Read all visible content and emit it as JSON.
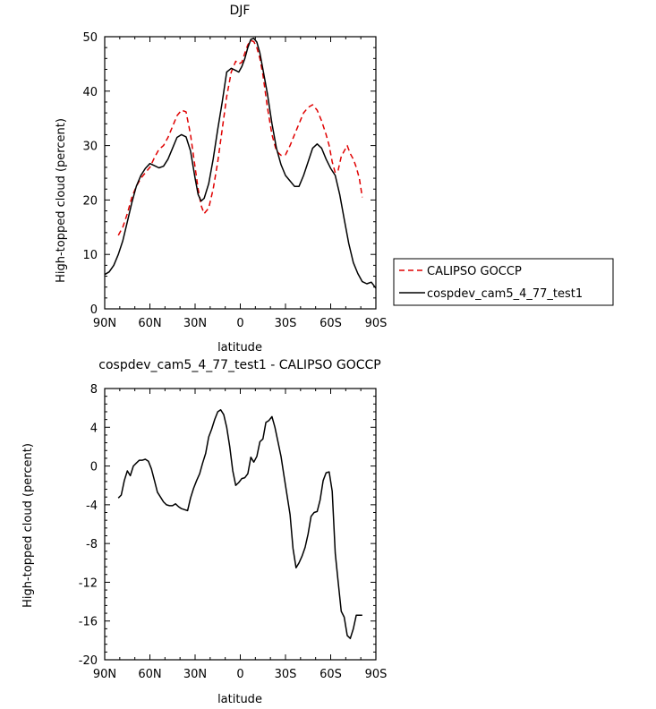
{
  "chart_data": [
    {
      "type": "line",
      "title": "DJF",
      "xlabel": "latitude",
      "ylabel": "High-topped cloud (percent)",
      "xlim": [
        -90,
        90
      ],
      "ylim": [
        0,
        50
      ],
      "x_ticks": [
        -90,
        -60,
        -30,
        0,
        30,
        60,
        90
      ],
      "x_tick_labels": [
        "90N",
        "60N",
        "30N",
        "0",
        "30S",
        "60S",
        "90S"
      ],
      "y_ticks": [
        0,
        10,
        20,
        30,
        40,
        50
      ],
      "y_tick_labels": [
        "0",
        "10",
        "20",
        "30",
        "40",
        "50"
      ],
      "legend_position": "right",
      "series": [
        {
          "name": "CALIPSO GOCCP",
          "color": "#e00000",
          "dash": "dashed",
          "x": [
            -81,
            -78,
            -75,
            -72,
            -69,
            -66,
            -63,
            -60,
            -57,
            -54,
            -51,
            -48,
            -45,
            -42,
            -39,
            -36,
            -33,
            -30,
            -28,
            -26,
            -24,
            -21,
            -18,
            -15,
            -12,
            -9,
            -6,
            -3,
            -1,
            1,
            3,
            5,
            7,
            9,
            11,
            13,
            15,
            18,
            21,
            24,
            27,
            30,
            33,
            36,
            39,
            42,
            45,
            48,
            51,
            54,
            57,
            59,
            61,
            63,
            65,
            67,
            69,
            71,
            73,
            75,
            77,
            79,
            81
          ],
          "y": [
            13.5,
            15,
            17.5,
            20.5,
            22.5,
            24,
            25,
            26,
            27.8,
            29.3,
            30,
            31.5,
            33.5,
            35.5,
            36.5,
            36.2,
            32,
            26,
            22,
            19,
            17.5,
            18.5,
            22,
            27,
            33,
            39,
            43.5,
            45.5,
            45,
            45.3,
            47,
            48.5,
            49.3,
            49.1,
            48,
            46,
            43,
            37,
            32,
            29,
            28.2,
            28.3,
            30,
            32,
            34,
            36,
            37,
            37.5,
            36.5,
            34.5,
            32,
            30,
            27,
            25,
            25.5,
            28,
            29,
            30,
            28.5,
            27.5,
            26,
            24,
            20.5
          ]
        },
        {
          "name": "cospdev_cam5_4_77_test1",
          "color": "#000000",
          "dash": "solid",
          "x": [
            -90,
            -87,
            -84,
            -81,
            -78,
            -75,
            -72,
            -69,
            -66,
            -63,
            -60,
            -57,
            -54,
            -51,
            -48,
            -45,
            -42,
            -39,
            -36,
            -33,
            -30,
            -28,
            -26,
            -24,
            -21,
            -18,
            -15,
            -12,
            -9,
            -6,
            -3,
            -1,
            1,
            3,
            5,
            7,
            9,
            11,
            13,
            15,
            18,
            21,
            24,
            27,
            30,
            33,
            36,
            39,
            42,
            45,
            48,
            51,
            54,
            57,
            60,
            63,
            66,
            69,
            72,
            75,
            78,
            81,
            84,
            87,
            90
          ],
          "y": [
            6.3,
            6.8,
            8,
            10,
            12.5,
            16,
            19.5,
            22.5,
            24.5,
            25.8,
            26.7,
            26.3,
            25.9,
            26.2,
            27.5,
            29.5,
            31.5,
            32,
            31.6,
            29,
            24,
            21,
            19.8,
            20.3,
            23,
            27.5,
            33,
            38,
            43.5,
            44.2,
            43.8,
            43.5,
            44.5,
            46,
            48,
            49.5,
            49.7,
            49,
            47,
            44,
            39.5,
            34,
            29.5,
            26.5,
            24.5,
            23.5,
            22.5,
            22.5,
            24.5,
            27,
            29.5,
            30.3,
            29.5,
            27.5,
            25.8,
            24.5,
            21,
            16.5,
            12,
            8.5,
            6.5,
            5,
            4.6,
            4.9,
            3.8
          ]
        }
      ]
    },
    {
      "type": "line",
      "title": "cospdev_cam5_4_77_test1 - CALIPSO GOCCP",
      "xlabel": "latitude",
      "ylabel": "High-topped cloud (percent)",
      "xlim": [
        -90,
        90
      ],
      "ylim": [
        -20,
        8
      ],
      "x_ticks": [
        -90,
        -60,
        -30,
        0,
        30,
        60,
        90
      ],
      "x_tick_labels": [
        "90N",
        "60N",
        "30N",
        "0",
        "30S",
        "60S",
        "90S"
      ],
      "y_ticks": [
        -20,
        -16,
        -12,
        -8,
        -4,
        0,
        4,
        8
      ],
      "y_tick_labels": [
        "-20",
        "-16",
        "-12",
        "-8",
        "-4",
        "0",
        "4",
        "8"
      ],
      "series": [
        {
          "color": "#000000",
          "dash": "solid",
          "x": [
            -81,
            -79,
            -77,
            -75,
            -73,
            -71,
            -69,
            -67,
            -65,
            -63,
            -61,
            -59,
            -57,
            -55,
            -53,
            -51,
            -49,
            -47,
            -45,
            -43,
            -41,
            -39,
            -37,
            -35,
            -33,
            -31,
            -29,
            -27,
            -25,
            -23,
            -21,
            -19,
            -17,
            -15,
            -13,
            -11,
            -9,
            -7,
            -5,
            -3,
            -1,
            1,
            3,
            5,
            7,
            9,
            11,
            13,
            15,
            17,
            19,
            21,
            23,
            25,
            27,
            29,
            31,
            33,
            35,
            37,
            39,
            41,
            43,
            45,
            47,
            49,
            51,
            53,
            55,
            57,
            59,
            61,
            63,
            65,
            67,
            69,
            71,
            73,
            75,
            77,
            79,
            81
          ],
          "y": [
            -3.3,
            -3,
            -1.5,
            -0.5,
            -1,
            0,
            0.3,
            0.6,
            0.6,
            0.7,
            0.5,
            -0.3,
            -1.5,
            -2.7,
            -3.2,
            -3.7,
            -4,
            -4.1,
            -4.1,
            -3.9,
            -4.2,
            -4.4,
            -4.5,
            -4.6,
            -3.3,
            -2.3,
            -1.5,
            -0.8,
            0.3,
            1.3,
            3,
            3.8,
            4.8,
            5.6,
            5.8,
            5.3,
            4,
            2,
            -0.5,
            -2,
            -1.7,
            -1.3,
            -1.2,
            -0.8,
            0.9,
            0.4,
            1,
            2.5,
            2.8,
            4.5,
            4.7,
            5.1,
            4,
            2.5,
            1,
            -1,
            -3,
            -5,
            -8.5,
            -10.5,
            -10,
            -9.3,
            -8.4,
            -7,
            -5.2,
            -4.8,
            -4.7,
            -3.5,
            -1.5,
            -0.7,
            -0.6,
            -2.6,
            -9,
            -12,
            -15,
            -15.6,
            -17.5,
            -17.8,
            -16.8,
            -15.4,
            -15.4,
            -15.4
          ]
        }
      ]
    }
  ]
}
